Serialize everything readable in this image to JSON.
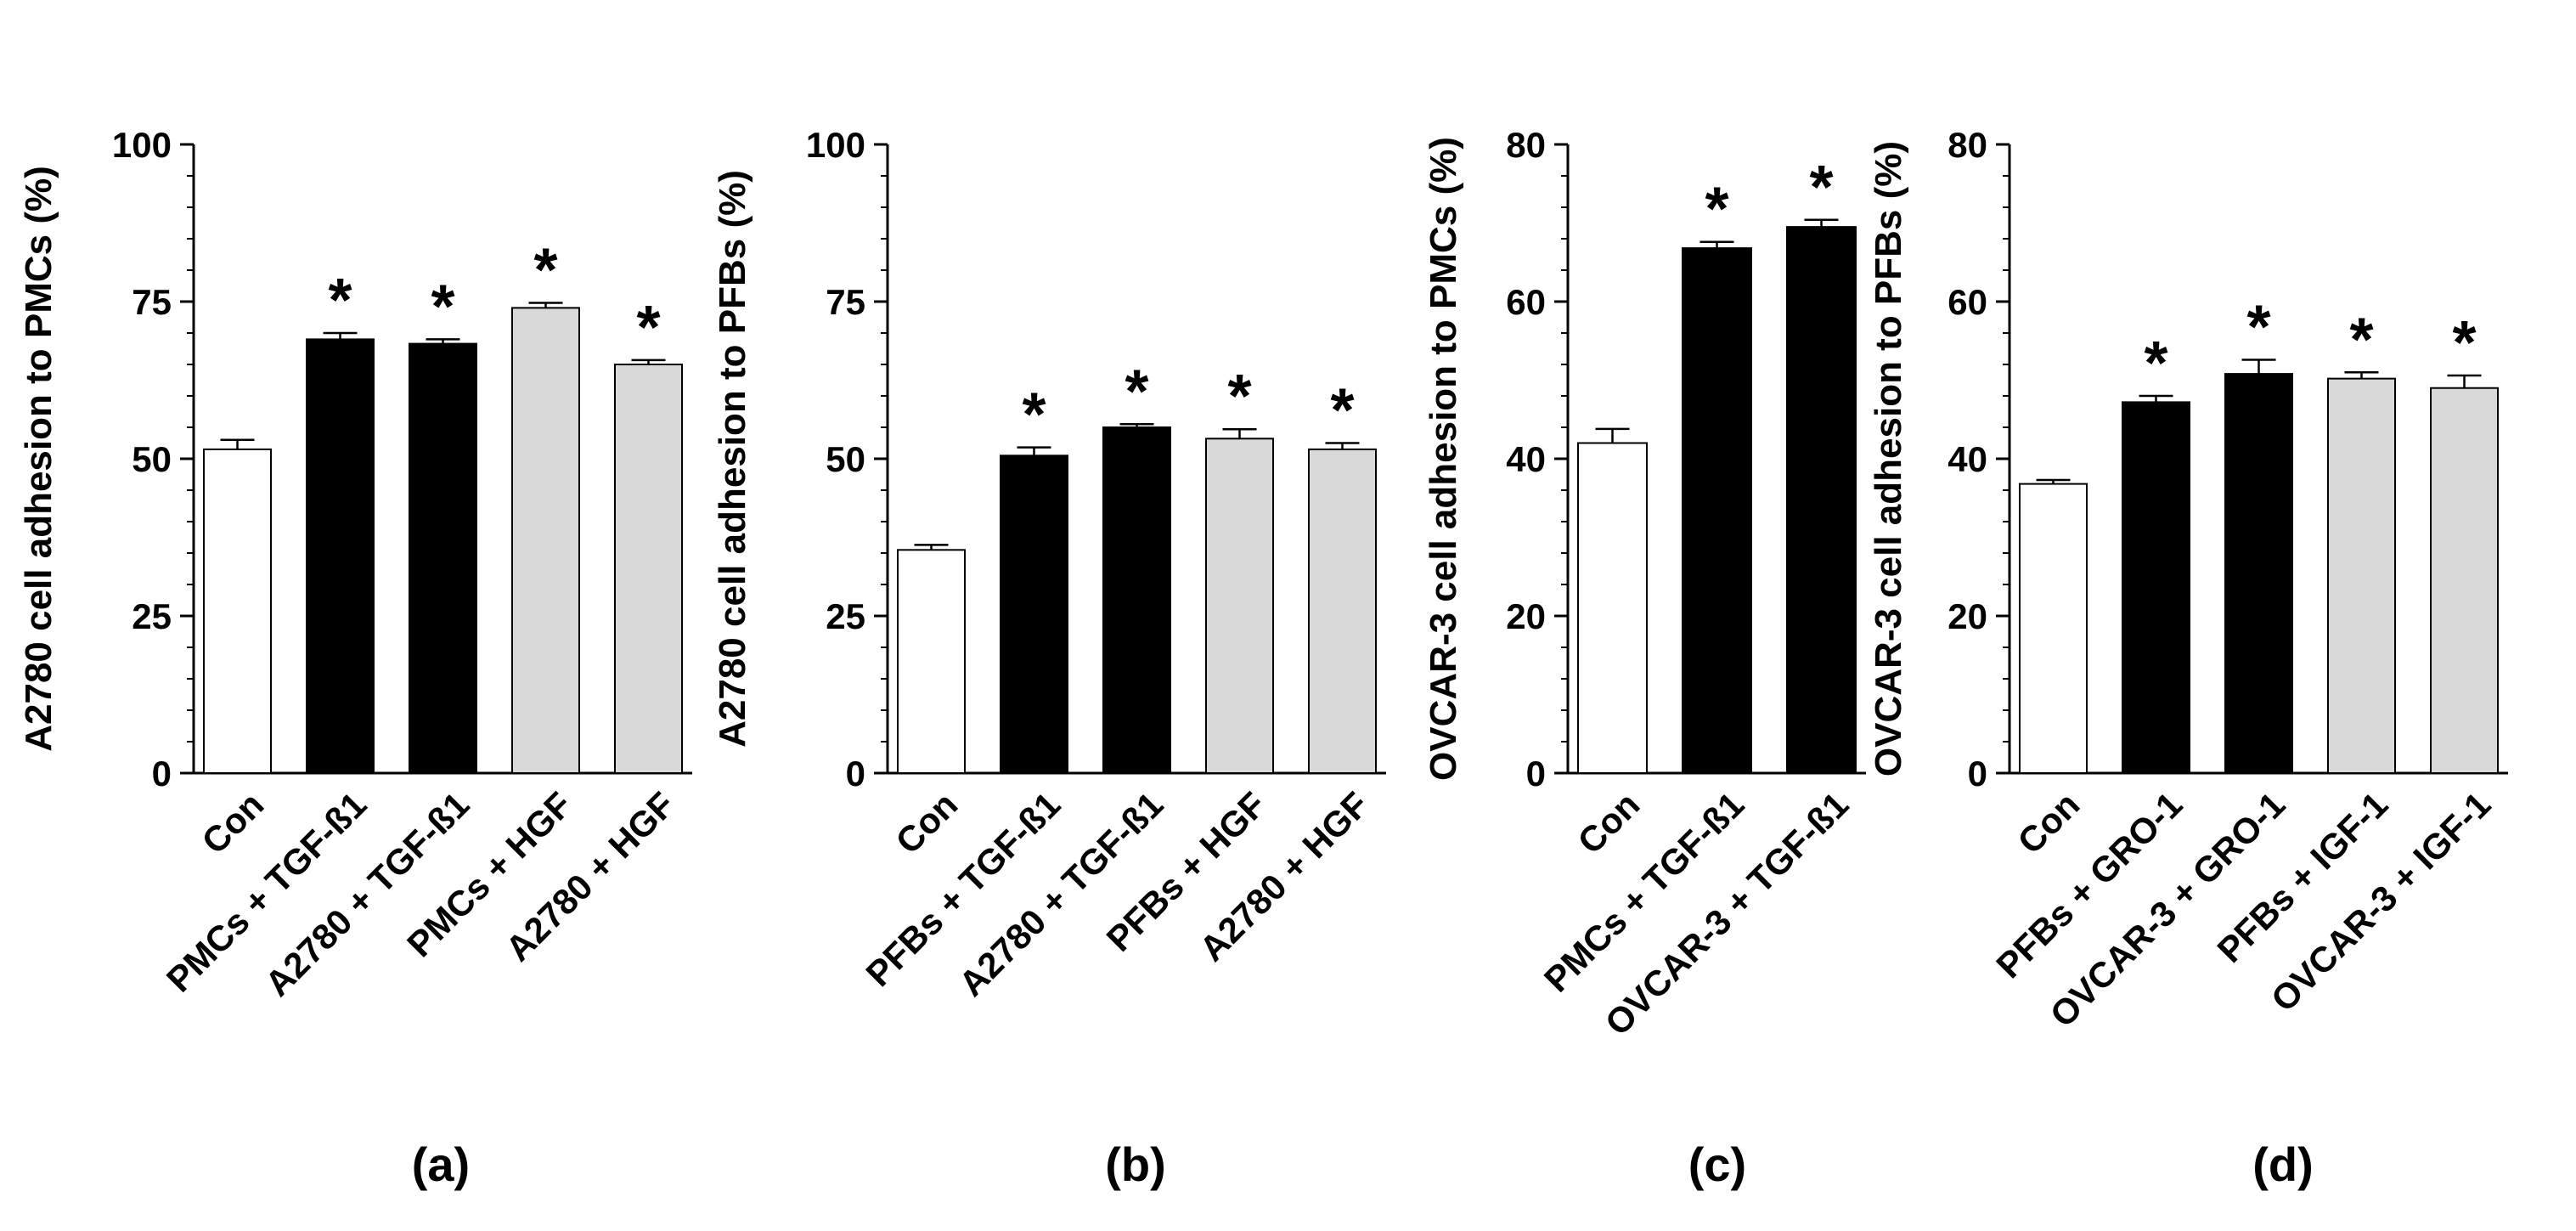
{
  "colors": {
    "control": "#ffffff",
    "tgf": "#000000",
    "growth_factor": "#d9d9d9",
    "axis": "#000000"
  },
  "chart_data": [
    {
      "type": "bar",
      "panel_label": "(a)",
      "ylabel": "A2780 cell adhesion to PMCs (%)",
      "ylim": [
        0,
        100
      ],
      "yticks": [
        0,
        25,
        50,
        75,
        100
      ],
      "yticks_text": [
        "0",
        "25",
        "50",
        "75",
        "100"
      ],
      "categories": [
        "Con",
        "PMCs + TGF-ß1",
        "A2780 + TGF-ß1",
        "PMCs + HGF",
        "A2780 + HGF"
      ],
      "values": [
        51.5,
        69,
        68.3,
        74,
        65
      ],
      "errors": [
        1.5,
        1.0,
        0.7,
        0.8,
        0.7
      ],
      "fills": [
        "control",
        "tgf",
        "tgf",
        "growth_factor",
        "growth_factor"
      ],
      "significance": [
        "",
        "*",
        "*",
        "*",
        "*"
      ]
    },
    {
      "type": "bar",
      "panel_label": "(b)",
      "ylabel": "A2780 cell adhesion to PFBs (%)",
      "ylim": [
        0,
        100
      ],
      "yticks": [
        0,
        25,
        50,
        75,
        100
      ],
      "yticks_text": [
        "0",
        "25",
        "50",
        "75",
        "100"
      ],
      "categories": [
        "Con",
        "PFBs + TGF-ß1",
        "A2780 + TGF-ß1",
        "PFBs + HGF",
        "A2780 + HGF"
      ],
      "values": [
        35.5,
        50.5,
        55,
        53.2,
        51.5
      ],
      "errors": [
        0.8,
        1.3,
        0.5,
        1.5,
        1.0
      ],
      "fills": [
        "control",
        "tgf",
        "tgf",
        "growth_factor",
        "growth_factor"
      ],
      "significance": [
        "",
        "*",
        "*",
        "*",
        "*"
      ]
    },
    {
      "type": "bar",
      "panel_label": "(c)",
      "ylabel": "OVCAR-3 cell adhesion to PMCs (%)",
      "ylim": [
        0,
        80
      ],
      "yticks": [
        0,
        20,
        40,
        60,
        80
      ],
      "yticks_text": [
        "0",
        "20",
        "40",
        "60",
        "80"
      ],
      "categories": [
        "Con",
        "PMCs + TGF-ß1",
        "OVCAR-3 + TGF-ß1"
      ],
      "values": [
        42,
        66.8,
        69.5
      ],
      "errors": [
        1.8,
        0.8,
        0.9
      ],
      "fills": [
        "control",
        "tgf",
        "tgf"
      ],
      "significance": [
        "",
        "*",
        "*"
      ]
    },
    {
      "type": "bar",
      "panel_label": "(d)",
      "ylabel": "OVCAR-3 cell adhesion to PFBs (%)",
      "ylim": [
        0,
        80
      ],
      "yticks": [
        0,
        20,
        40,
        60,
        80
      ],
      "yticks_text": [
        "0",
        "20",
        "40",
        "60",
        "80"
      ],
      "categories": [
        "Con",
        "PFBs + GRO-1",
        "OVCAR-3 + GRO-1",
        "PFBs + IGF-1",
        "OVCAR-3 + IGF-1"
      ],
      "values": [
        36.8,
        47.2,
        50.8,
        50.2,
        49
      ],
      "errors": [
        0.5,
        0.8,
        1.8,
        0.8,
        1.6
      ],
      "fills": [
        "control",
        "tgf",
        "tgf",
        "growth_factor",
        "growth_factor"
      ],
      "significance": [
        "",
        "*",
        "*",
        "*",
        "*"
      ]
    }
  ]
}
